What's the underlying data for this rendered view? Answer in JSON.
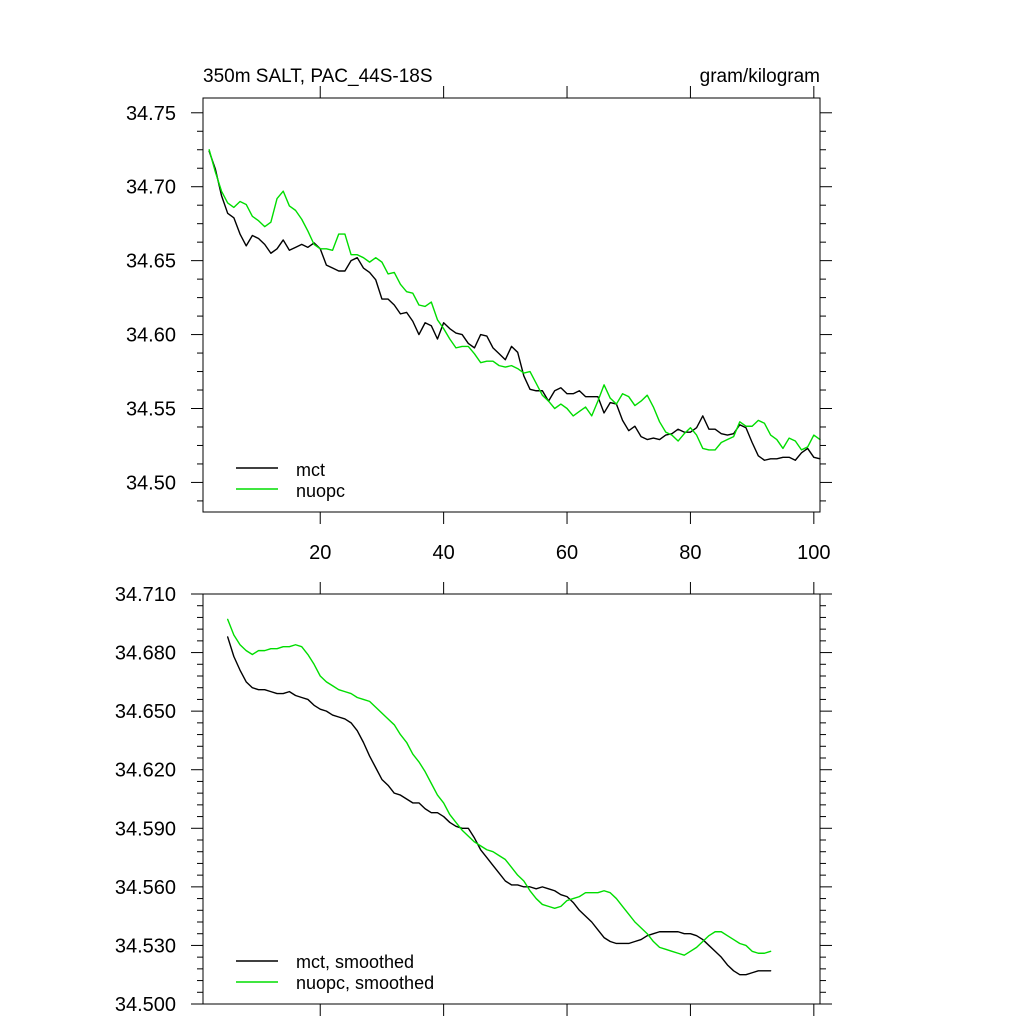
{
  "chart_data": [
    {
      "type": "line",
      "title_left": "350m SALT, PAC_44S-18S",
      "title_right": "gram/kilogram",
      "xlabel": "",
      "ylabel": "",
      "xlim": [
        1,
        101
      ],
      "ylim": [
        34.48,
        34.76
      ],
      "x_tick_labels": [
        "20",
        "40",
        "60",
        "80",
        "100"
      ],
      "x_ticks": [
        20,
        40,
        60,
        80,
        100
      ],
      "y_tick_labels": [
        "34.50",
        "34.55",
        "34.60",
        "34.65",
        "34.70",
        "34.75"
      ],
      "y_ticks": [
        34.5,
        34.55,
        34.6,
        34.65,
        34.7,
        34.75
      ],
      "legend_position": "bottom-left",
      "x_start": 2,
      "series": [
        {
          "name": "mct",
          "color": "#000000",
          "values": [
            34.724,
            34.712,
            34.694,
            34.682,
            34.679,
            34.668,
            34.66,
            34.667,
            34.665,
            34.661,
            34.655,
            34.658,
            34.664,
            34.657,
            34.659,
            34.661,
            34.659,
            34.662,
            34.658,
            34.647,
            34.645,
            34.643,
            34.643,
            34.65,
            34.652,
            34.645,
            34.642,
            34.637,
            34.624,
            34.624,
            34.62,
            34.614,
            34.615,
            34.609,
            34.6,
            34.608,
            34.606,
            34.597,
            34.608,
            34.604,
            34.601,
            34.6,
            34.594,
            34.591,
            34.6,
            34.599,
            34.591,
            34.587,
            34.583,
            34.592,
            34.588,
            34.572,
            34.563,
            34.562,
            34.562,
            34.555,
            34.562,
            34.564,
            34.56,
            34.56,
            34.562,
            34.558,
            34.558,
            34.558,
            34.547,
            34.554,
            34.553,
            34.542,
            34.535,
            34.538,
            34.531,
            34.529,
            34.53,
            34.529,
            34.532,
            34.533,
            34.536,
            34.534,
            34.534,
            34.537,
            34.545,
            34.536,
            34.536,
            34.533,
            34.532,
            34.533,
            34.539,
            34.537,
            34.527,
            34.518,
            34.515,
            34.516,
            34.516,
            34.517,
            34.517,
            34.515,
            34.52,
            34.523,
            34.517,
            34.516
          ]
        },
        {
          "name": "nuopc",
          "color": "#00dd00",
          "values": [
            34.725,
            34.71,
            34.697,
            34.689,
            34.686,
            34.69,
            34.688,
            34.68,
            34.677,
            34.673,
            34.676,
            34.692,
            34.697,
            34.687,
            34.684,
            34.678,
            34.67,
            34.661,
            34.658,
            34.658,
            34.657,
            34.668,
            34.668,
            34.654,
            34.654,
            34.652,
            34.649,
            34.652,
            34.649,
            34.641,
            34.642,
            34.634,
            34.629,
            34.628,
            34.62,
            34.619,
            34.622,
            34.61,
            34.604,
            34.597,
            34.591,
            34.592,
            34.592,
            34.587,
            34.581,
            34.582,
            34.582,
            34.579,
            34.578,
            34.579,
            34.577,
            34.574,
            34.575,
            34.567,
            34.559,
            34.555,
            34.55,
            34.553,
            34.55,
            34.545,
            34.548,
            34.551,
            34.545,
            34.555,
            34.566,
            34.557,
            34.553,
            34.56,
            34.558,
            34.552,
            34.555,
            34.559,
            34.551,
            34.541,
            34.534,
            34.532,
            34.528,
            34.533,
            34.537,
            34.532,
            34.523,
            34.522,
            34.522,
            34.527,
            34.529,
            34.531,
            34.541,
            34.538,
            34.538,
            34.542,
            34.54,
            34.532,
            34.529,
            34.523,
            34.53,
            34.528,
            34.522,
            34.524,
            34.532,
            34.529
          ]
        }
      ]
    },
    {
      "type": "line",
      "title_left": "",
      "title_right": "",
      "xlabel": "",
      "ylabel": "",
      "xlim": [
        1,
        101
      ],
      "ylim": [
        34.5,
        34.71
      ],
      "x_tick_labels": [],
      "x_ticks": [
        20,
        40,
        60,
        80,
        100
      ],
      "y_tick_labels": [
        "34.500",
        "34.530",
        "34.560",
        "34.590",
        "34.620",
        "34.650",
        "34.680",
        "34.710"
      ],
      "y_ticks": [
        34.5,
        34.53,
        34.56,
        34.59,
        34.62,
        34.65,
        34.68,
        34.71
      ],
      "legend_position": "bottom-left",
      "x_start": 5,
      "series": [
        {
          "name": "mct, smoothed",
          "color": "#000000",
          "values": [
            34.688,
            34.678,
            34.671,
            34.665,
            34.662,
            34.661,
            34.661,
            34.66,
            34.659,
            34.659,
            34.66,
            34.658,
            34.657,
            34.656,
            34.653,
            34.651,
            34.65,
            34.648,
            34.647,
            34.646,
            34.644,
            34.64,
            34.634,
            34.627,
            34.621,
            34.615,
            34.612,
            34.608,
            34.607,
            34.605,
            34.603,
            34.603,
            34.6,
            34.598,
            34.598,
            34.596,
            34.593,
            34.591,
            34.59,
            34.59,
            34.585,
            34.579,
            34.575,
            34.571,
            34.567,
            34.563,
            34.561,
            34.561,
            34.56,
            34.56,
            34.559,
            34.56,
            34.559,
            34.558,
            34.556,
            34.555,
            34.552,
            34.548,
            34.545,
            34.542,
            34.538,
            34.534,
            34.532,
            34.531,
            34.531,
            34.531,
            34.532,
            34.533,
            34.535,
            34.536,
            34.537,
            34.537,
            34.537,
            34.537,
            34.536,
            34.536,
            34.535,
            34.533,
            34.53,
            34.527,
            34.524,
            34.52,
            34.517,
            34.515,
            34.515,
            34.516,
            34.517,
            34.517,
            34.517
          ]
        },
        {
          "name": "nuopc, smoothed",
          "color": "#00dd00",
          "values": [
            34.697,
            34.689,
            34.684,
            34.681,
            34.679,
            34.681,
            34.681,
            34.682,
            34.682,
            34.683,
            34.683,
            34.684,
            34.683,
            34.679,
            34.674,
            34.668,
            34.665,
            34.663,
            34.661,
            34.66,
            34.659,
            34.657,
            34.656,
            34.655,
            34.652,
            34.649,
            34.646,
            34.643,
            34.638,
            34.634,
            34.628,
            34.624,
            34.619,
            34.613,
            34.607,
            34.603,
            34.597,
            34.593,
            34.589,
            34.586,
            34.583,
            34.581,
            34.579,
            34.578,
            34.576,
            34.574,
            34.57,
            34.566,
            34.563,
            34.558,
            34.554,
            34.551,
            34.55,
            34.549,
            34.55,
            34.553,
            34.554,
            34.555,
            34.557,
            34.557,
            34.557,
            34.558,
            34.557,
            34.554,
            34.55,
            34.546,
            34.542,
            34.539,
            34.536,
            34.532,
            34.529,
            34.528,
            34.527,
            34.526,
            34.525,
            34.527,
            34.529,
            34.532,
            34.535,
            34.537,
            34.537,
            34.535,
            34.533,
            34.531,
            34.53,
            34.527,
            34.526,
            34.526,
            34.527
          ]
        }
      ]
    }
  ]
}
